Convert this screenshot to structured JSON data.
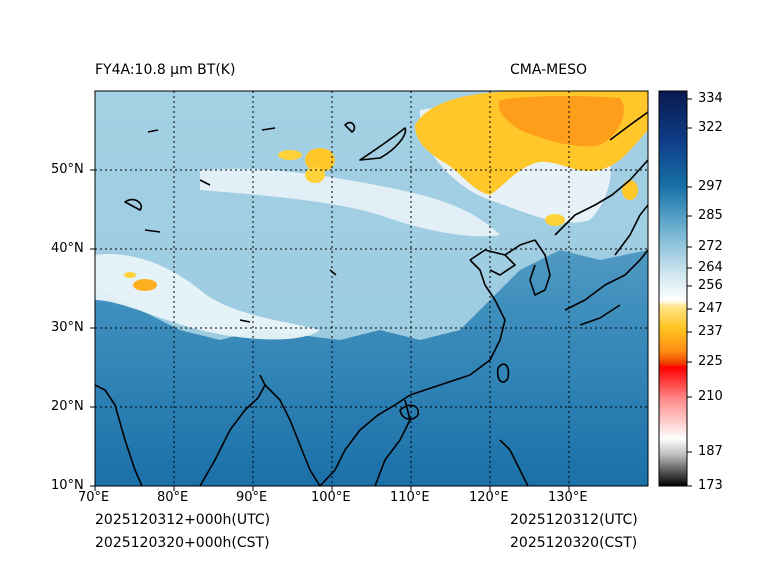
{
  "header": {
    "left_title": "FY4A:10.8 μm BT(K)",
    "right_title": "CMA-MESO"
  },
  "footer": {
    "left_line1": "2025120312+000h(UTC)",
    "left_line2": "2025120320+000h(CST)",
    "right_line1": "2025120312(UTC)",
    "right_line2": "2025120320(CST)"
  },
  "map": {
    "lon_range": [
      70,
      140
    ],
    "lat_range": [
      10,
      60
    ],
    "lon_ticks": [
      "70°E",
      "80°E",
      "90°E",
      "100°E",
      "110°E",
      "120°E",
      "130°E"
    ],
    "lat_ticks": [
      "10°N",
      "20°N",
      "30°N",
      "40°N",
      "50°N"
    ],
    "grid": "dotted"
  },
  "colorbar": {
    "ticks": [
      "334",
      "322",
      "297",
      "285",
      "272",
      "264",
      "256",
      "247",
      "237",
      "225",
      "210",
      "187",
      "173"
    ],
    "colors": {
      "navy": "#0a1f5c",
      "blue": "#1670a6",
      "light_blue": "#a9d3e6",
      "white": "#ffffff",
      "yellow": "#ffd23a",
      "orange": "#ff8c14",
      "red": "#ff0000",
      "pink": "#ffc0c0",
      "gray": "#888888",
      "black": "#000000"
    }
  }
}
